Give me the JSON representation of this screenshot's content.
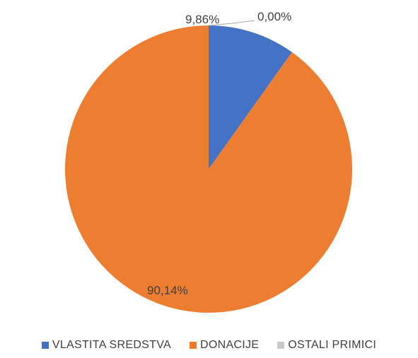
{
  "chart_data": {
    "type": "pie",
    "title": "",
    "categories": [
      "VLASTITA SREDSTVA",
      "DONACIJE",
      "OSTALI PRIMICI"
    ],
    "values": [
      9.86,
      90.14,
      0.0
    ],
    "data_labels": [
      "9,86%",
      "90,14%",
      "0,00%"
    ],
    "colors": [
      "#4472C4",
      "#ED7D31",
      "#C9C9C9"
    ],
    "legend_position": "bottom",
    "start_angle": "top, clockwise"
  }
}
